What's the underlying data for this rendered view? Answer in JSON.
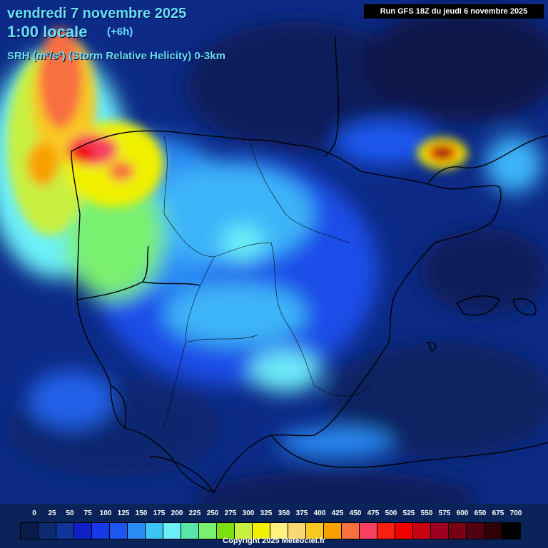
{
  "header": {
    "date_line": "vendredi 7 novembre 2025",
    "time_line": "1:00 locale",
    "offset": "(+6h)",
    "parameter": "SRH (m²/s²) (Storm Relative Helicity) 0-3km",
    "run_info": "Run GFS 18Z du jeudi 6 novembre 2025"
  },
  "legend": {
    "labels": [
      "0",
      "25",
      "50",
      "75",
      "100",
      "125",
      "150",
      "175",
      "200",
      "225",
      "250",
      "275",
      "300",
      "325",
      "350",
      "375",
      "400",
      "425",
      "450",
      "475",
      "500",
      "525",
      "550",
      "575",
      "600",
      "650",
      "675",
      "700"
    ],
    "colors": [
      "#0a1a4a",
      "#0d2a6e",
      "#10359a",
      "#1020c8",
      "#1538e8",
      "#1c58f0",
      "#2a8cf5",
      "#3cc4f8",
      "#6cf0f8",
      "#58e6a8",
      "#7af070",
      "#7ce010",
      "#c8f040",
      "#f0f000",
      "#fff080",
      "#f8d870",
      "#f8c820",
      "#f8a000",
      "#f87040",
      "#f84060",
      "#f82010",
      "#f00000",
      "#c80010",
      "#a00020",
      "#780010",
      "#500010",
      "#300008",
      "#000000"
    ],
    "copyright": "Copyright 2025 Meteociel.fr"
  }
}
